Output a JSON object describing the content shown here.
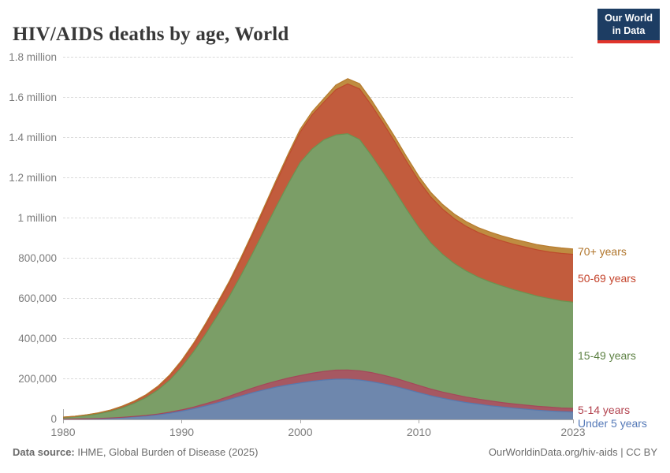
{
  "header": {
    "title": "HIV/AIDS deaths by age, World"
  },
  "logo": {
    "line1": "Our World",
    "line2": "in Data",
    "bg_color": "#1d3d63",
    "accent_color": "#e0342b"
  },
  "footer": {
    "source_label": "Data source:",
    "source_text": " IHME, Global Burden of Disease (2025)",
    "right_text": "OurWorldinData.org/hiv-aids | CC BY"
  },
  "chart_data": {
    "type": "area",
    "stacked": true,
    "title": "HIV/AIDS deaths by age, World",
    "xlabel": "",
    "ylabel": "",
    "grid": true,
    "legend_position": "right-edge-labels",
    "xlim": [
      1980,
      2023
    ],
    "ylim": [
      0,
      1800000
    ],
    "x": [
      1980,
      1981,
      1982,
      1983,
      1984,
      1985,
      1986,
      1987,
      1988,
      1989,
      1990,
      1991,
      1992,
      1993,
      1994,
      1995,
      1996,
      1997,
      1998,
      1999,
      2000,
      2001,
      2002,
      2003,
      2004,
      2005,
      2006,
      2007,
      2008,
      2009,
      2010,
      2011,
      2012,
      2013,
      2014,
      2015,
      2016,
      2017,
      2018,
      2019,
      2020,
      2021,
      2022,
      2023
    ],
    "series": [
      {
        "name": "Under 5 years",
        "fill": "#6e87ad",
        "line": "#5779ae",
        "label_color": "#567ab8",
        "values": [
          1000,
          1600,
          2600,
          4000,
          6000,
          9000,
          13000,
          17000,
          23000,
          31000,
          41000,
          53000,
          67000,
          82000,
          99000,
          116000,
          133000,
          148000,
          161000,
          172000,
          181000,
          190000,
          196000,
          200000,
          200000,
          196000,
          188000,
          177000,
          164000,
          149000,
          133000,
          118000,
          105000,
          94000,
          84000,
          76000,
          68000,
          62000,
          56000,
          51000,
          46000,
          42000,
          39000,
          37000
        ]
      },
      {
        "name": "5-14 years",
        "fill": "#a65862",
        "line": "#a4485a",
        "label_color": "#b2424e",
        "values": [
          200,
          300,
          500,
          700,
          1000,
          1400,
          2000,
          2700,
          3600,
          4800,
          6300,
          8000,
          10500,
          13000,
          16000,
          20000,
          23000,
          27000,
          30000,
          34000,
          37000,
          40000,
          43000,
          45000,
          46000,
          46000,
          45000,
          43000,
          41000,
          38000,
          36000,
          33000,
          31000,
          29000,
          27000,
          25000,
          24000,
          22000,
          21000,
          20000,
          19000,
          19000,
          18000,
          18000
        ]
      },
      {
        "name": "15-49 years",
        "fill": "#7b9e67",
        "line": "#6b9351",
        "label_color": "#5d8143",
        "values": [
          8000,
          11000,
          16000,
          23000,
          33000,
          47000,
          65000,
          89000,
          120000,
          160000,
          213000,
          275000,
          345000,
          420000,
          495000,
          580000,
          672000,
          770000,
          870000,
          968000,
          1060000,
          1115000,
          1152000,
          1170000,
          1175000,
          1150000,
          1080000,
          1005000,
          930000,
          855000,
          785000,
          728000,
          685000,
          652000,
          627000,
          607000,
          592000,
          580000,
          568000,
          558000,
          548000,
          540000,
          533000,
          528000
        ]
      },
      {
        "name": "50-69 years",
        "fill": "#c25c3d",
        "line": "#bd4b2d",
        "label_color": "#c4432b",
        "values": [
          2000,
          2500,
          3500,
          4500,
          6000,
          8000,
          10000,
          13000,
          17000,
          23000,
          30000,
          38000,
          47000,
          57000,
          68000,
          80000,
          93000,
          107000,
          121000,
          136000,
          152000,
          170000,
          188000,
          225000,
          248000,
          252000,
          250000,
          247000,
          243000,
          238000,
          232000,
          228000,
          225000,
          223000,
          222000,
          222000,
          223000,
          224000,
          226000,
          228000,
          230000,
          232000,
          236000,
          238000
        ]
      },
      {
        "name": "70+ years",
        "fill": "#bf8c41",
        "line": "#b67b2e",
        "label_color": "#b0752b",
        "values": [
          300,
          400,
          500,
          600,
          800,
          1000,
          1200,
          1500,
          2000,
          3000,
          4000,
          5000,
          6000,
          7000,
          8000,
          9000,
          10000,
          11000,
          12000,
          13000,
          14000,
          16000,
          18000,
          23000,
          26000,
          26000,
          26000,
          25000,
          25000,
          24000,
          23000,
          23000,
          23000,
          23000,
          24000,
          24000,
          25000,
          25000,
          26000,
          26000,
          26000,
          27000,
          27000,
          27000
        ]
      }
    ],
    "yticks": [
      {
        "label": "1.8 million",
        "value": 1800000
      },
      {
        "label": "1.6 million",
        "value": 1600000
      },
      {
        "label": "1.4 million",
        "value": 1400000
      },
      {
        "label": "1.2 million",
        "value": 1200000
      },
      {
        "label": "1 million",
        "value": 1000000
      },
      {
        "label": "800,000",
        "value": 800000
      },
      {
        "label": "600,000",
        "value": 600000
      },
      {
        "label": "400,000",
        "value": 400000
      },
      {
        "label": "200,000",
        "value": 200000
      },
      {
        "label": "0",
        "value": 0
      }
    ],
    "xticks": [
      {
        "label": "1980",
        "value": 1980
      },
      {
        "label": "1990",
        "value": 1990
      },
      {
        "label": "2000",
        "value": 2000
      },
      {
        "label": "2010",
        "value": 2010
      },
      {
        "label": "2023",
        "value": 2023
      }
    ]
  }
}
